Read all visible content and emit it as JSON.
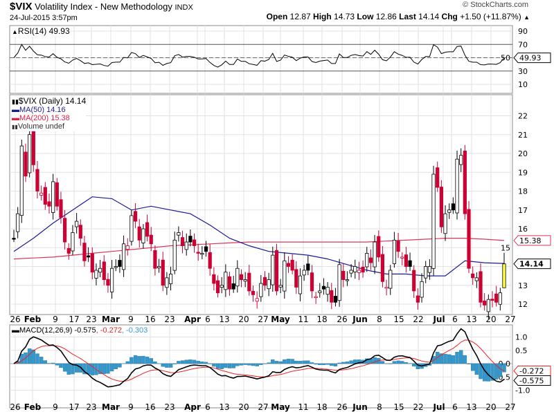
{
  "header": {
    "symbol": "$VIX",
    "name": "Volatility Index - New Methodology",
    "exchange": "INDX",
    "datetime": "24-Jul-2015 3:57pm",
    "copyright": "© StockCharts.com",
    "open_label": "Open",
    "open": "12.87",
    "high_label": "High",
    "high": "14.73",
    "low_label": "Low",
    "low": "12.86",
    "last_label": "Last",
    "last": "14.14",
    "chg_label": "Chg",
    "chg": "+1.50 (+11.87%)",
    "chg_arrow": "▲"
  },
  "rsi_panel": {
    "legend": "RSI(14) 49.93",
    "ticks": [
      "90",
      "70",
      "50",
      "30",
      "10"
    ],
    "value_tag": "49.93"
  },
  "price_panel": {
    "legend_main": "$VIX (Daily) 14.14",
    "legend_ma50": "MA(50) 14.16",
    "legend_ma200": "MA(200) 15.38",
    "legend_volume": "Volume undef",
    "ticks": [
      "22",
      "21",
      "20",
      "19",
      "18",
      "17",
      "16",
      "15",
      "13",
      "12"
    ],
    "tag_ma200": "15.38",
    "tag_last": "14.14"
  },
  "date_axis": [
    "26",
    "Feb",
    "9",
    "17",
    "23",
    "Mar",
    "9",
    "16",
    "23",
    "Apr",
    "6",
    "13",
    "20",
    "27",
    "May",
    "11",
    "18",
    "26",
    "Jun",
    "8",
    "15",
    "22",
    "Jul",
    "6",
    "13",
    "20",
    "27"
  ],
  "macd_panel": {
    "legend_main": "MACD(12,26,9) -0.575",
    "legend_signal": ", -0.272",
    "legend_hist": ", -0.303",
    "ticks": [
      "1.0",
      "0.5",
      "0.0",
      "-0.5",
      "-1.0"
    ],
    "tag_signal": "-0.272",
    "tag_macd": "-0.575"
  },
  "colors": {
    "up": "#000000",
    "down": "#cc0033",
    "ma50": "#1a1a99",
    "ma200": "#dd3355",
    "macd": "#000000",
    "signal": "#ee2222",
    "hist": "#3399cc",
    "last": "#ffff44"
  },
  "chart_data": {
    "type": "line",
    "title": "$VIX Volatility Index - New Methodology (Daily)",
    "xlabel": "",
    "ylabel": "",
    "ylim": [
      11.6,
      22.3
    ],
    "series": [
      {
        "name": "$VIX close",
        "values": [
          15.5,
          16.8,
          20.4,
          18.8,
          21.0,
          19.4,
          18.0,
          17.9,
          17.3,
          17.2,
          18.5,
          17.2,
          16.6,
          15.3,
          14.7,
          15.8,
          16.4,
          15.5,
          14.3,
          14.5,
          13.7,
          13.8,
          13.9,
          13.3,
          13.0,
          13.9,
          14.0,
          14.0,
          15.2,
          15.1,
          16.7,
          16.4,
          15.4,
          16.0,
          15.6,
          15.2,
          13.9,
          14.0,
          13.0,
          13.4,
          13.6,
          15.4,
          15.8,
          15.1,
          15.3,
          15.3,
          15.1,
          14.7,
          14.7,
          14.8,
          13.9,
          13.1,
          12.6,
          13.0,
          13.7,
          12.8,
          12.8,
          13.9,
          13.3,
          13.3,
          12.7,
          12.5,
          12.3,
          13.1,
          13.0,
          13.3,
          14.6,
          12.7,
          13.0,
          14.3,
          14.0,
          13.8,
          12.9,
          13.5,
          13.8,
          13.8,
          12.7,
          12.4,
          12.7,
          12.8,
          12.9,
          12.1,
          12.1,
          14.1,
          13.3,
          13.3,
          13.8,
          14.0,
          13.8,
          13.7,
          14.7,
          14.2,
          15.3,
          14.5,
          13.2,
          12.9,
          13.8,
          15.4,
          14.8,
          14.5,
          14.0,
          14.0,
          12.7,
          12.1,
          13.2,
          14.0,
          14.0,
          18.9,
          18.2,
          16.1,
          16.8,
          17.0,
          17.0,
          19.7,
          19.9,
          16.8,
          13.9,
          13.4,
          13.4,
          12.1,
          11.95,
          12.25,
          12.2,
          12.1,
          12.6,
          14.14
        ]
      },
      {
        "name": "MA(50)",
        "values": [
          14.8,
          15.5,
          16.3,
          17.0,
          17.7,
          17.6,
          17.0,
          17.2,
          17.0,
          16.8,
          16.2,
          15.5,
          15.1,
          14.8,
          14.7,
          14.6,
          14.4,
          14.1,
          13.8,
          13.6,
          13.6,
          13.5,
          13.5,
          14.3,
          14.2,
          14.16
        ]
      },
      {
        "name": "MA(200)",
        "values": [
          14.4,
          14.45,
          14.5,
          14.6,
          14.7,
          14.8,
          14.9,
          15.0,
          15.1,
          15.15,
          15.2,
          15.25,
          15.3,
          15.3,
          15.3,
          15.3,
          15.3,
          15.3,
          15.3,
          15.35,
          15.4,
          15.45,
          15.5,
          15.5,
          15.45,
          15.38
        ]
      }
    ],
    "rsi_ylim": [
      0,
      100
    ],
    "macd_ylim": [
      -1.25,
      1.35
    ]
  }
}
